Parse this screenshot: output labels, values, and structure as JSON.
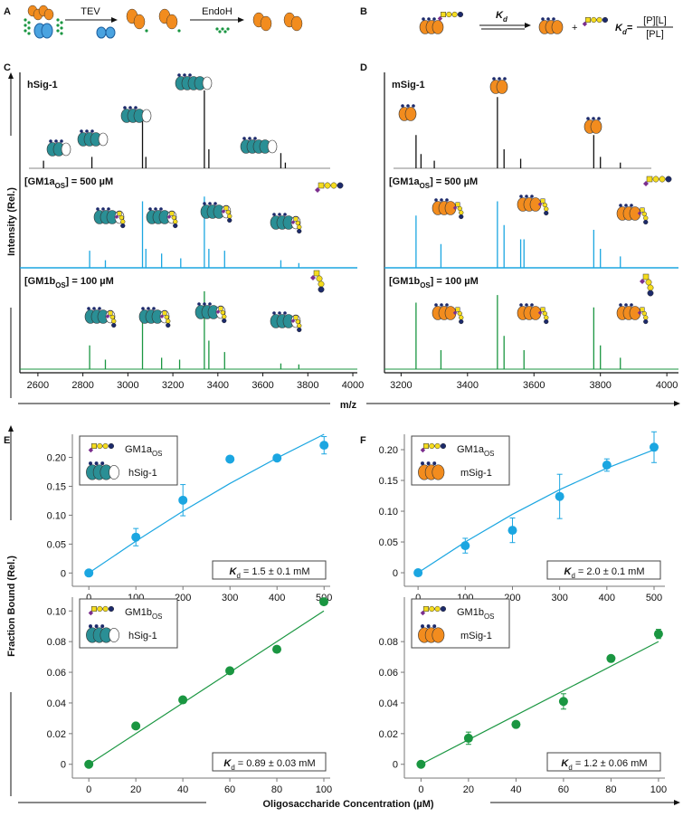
{
  "panels": [
    "A",
    "B",
    "C",
    "D",
    "E",
    "F"
  ],
  "panel_a": {
    "step1": "TEV",
    "step2": "EndoH"
  },
  "panel_b": {
    "kd_symbol": "K",
    "kd_subscript": "d",
    "plus": "+",
    "equals": "=",
    "numerator": "[P][L]",
    "denominator": "[PL]"
  },
  "axis_labels": {
    "mz": "m/z",
    "intensity": "Intensity (Rel.)",
    "fraction": "Fraction Bound (Rel.)",
    "concentration": "Oligosaccharide Concentration (µM)"
  },
  "chart_data": [
    {
      "type": "spectrum",
      "title": "hSig-1",
      "color": "#111111",
      "xlim": [
        2520,
        4020
      ],
      "ylim": [
        0,
        100
      ],
      "x": [
        2625,
        2840,
        3065,
        3080,
        3340,
        3360,
        3680,
        3700
      ],
      "values": [
        8,
        12,
        50,
        12,
        82,
        20,
        16,
        6
      ]
    },
    {
      "type": "spectrum",
      "label": {
        "name": "[GM1a",
        "subscript": "OS",
        "text": "] = 500 µM"
      },
      "color": "#1ba6e1",
      "xlim": [
        2520,
        4020
      ],
      "ylim": [
        0,
        100
      ],
      "x": [
        2830,
        2900,
        3065,
        3080,
        3150,
        3235,
        3340,
        3360,
        3430,
        3680,
        3760
      ],
      "values": [
        18,
        8,
        70,
        20,
        15,
        10,
        75,
        20,
        18,
        8,
        5
      ]
    },
    {
      "type": "spectrum",
      "label": {
        "name": "[GM1b",
        "subscript": "OS",
        "text": "] = 100 µM"
      },
      "color": "#1a9641",
      "xlim": [
        2520,
        4020
      ],
      "ylim": [
        0,
        100
      ],
      "xticks": [
        2600,
        2800,
        3000,
        3200,
        3400,
        3600,
        3800,
        4000
      ],
      "x": [
        2830,
        2900,
        3065,
        3150,
        3230,
        3340,
        3360,
        3430,
        3680,
        3760
      ],
      "values": [
        25,
        10,
        55,
        12,
        10,
        82,
        30,
        18,
        6,
        5
      ]
    },
    {
      "type": "spectrum",
      "title": "mSig-1",
      "color": "#111111",
      "xlim": [
        3150,
        4035
      ],
      "ylim": [
        0,
        100
      ],
      "x": [
        3245,
        3260,
        3300,
        3490,
        3510,
        3560,
        3780,
        3800,
        3860
      ],
      "values": [
        35,
        15,
        8,
        75,
        20,
        10,
        35,
        12,
        6
      ]
    },
    {
      "type": "spectrum",
      "label": {
        "name": "[GM1a",
        "subscript": "OS",
        "text": "] = 500 µM"
      },
      "color": "#1ba6e1",
      "xlim": [
        3150,
        4035
      ],
      "ylim": [
        0,
        100
      ],
      "x": [
        3245,
        3320,
        3490,
        3510,
        3560,
        3570,
        3780,
        3800,
        3860
      ],
      "values": [
        55,
        25,
        70,
        45,
        30,
        30,
        40,
        20,
        12
      ]
    },
    {
      "type": "spectrum",
      "label": {
        "name": "[GM1b",
        "subscript": "OS",
        "text": "] = 100 µM"
      },
      "color": "#1a9641",
      "xlim": [
        3150,
        4035
      ],
      "ylim": [
        0,
        100
      ],
      "xticks": [
        3200,
        3400,
        3600,
        3800,
        4000
      ],
      "x": [
        3245,
        3320,
        3490,
        3510,
        3570,
        3780,
        3800,
        3860
      ],
      "values": [
        70,
        20,
        78,
        35,
        20,
        65,
        25,
        12
      ]
    },
    {
      "type": "scatter",
      "color": "#1ba6e1",
      "xlim": [
        -35,
        513
      ],
      "ylim": [
        -0.023,
        0.24
      ],
      "xticks": [
        0,
        100,
        200,
        300,
        400,
        500
      ],
      "yticks": [
        0,
        0.05,
        {
          "value": 0.1,
          "label": "0.10"
        },
        0.15,
        {
          "value": 0.2,
          "label": "0.20"
        }
      ],
      "x": [
        0,
        100,
        200,
        300,
        400,
        500
      ],
      "values": [
        0,
        0.062,
        0.126,
        0.197,
        0.199,
        0.221
      ],
      "errors": [
        null,
        0.015,
        0.027,
        null,
        null,
        0.015
      ],
      "fit": {
        "x": [
          0,
          100,
          200,
          300,
          400,
          500
        ],
        "values": [
          0,
          0.055,
          0.107,
          0.155,
          0.199,
          0.24
        ]
      },
      "legend": {
        "name": "GM1a",
        "subscript": "OS",
        "protein": "hSig-1"
      },
      "kd": {
        "symbol": "K",
        "subscript": "d",
        "text": " = 1.5 ± 0.1 mM"
      }
    },
    {
      "type": "scatter",
      "color": "#1a9641",
      "xlim": [
        -7,
        102.7
      ],
      "ylim": [
        -0.009,
        0.109
      ],
      "xticks": [
        0,
        20,
        40,
        60,
        80,
        100
      ],
      "yticks": [
        0,
        0.02,
        0.04,
        0.06,
        0.08,
        {
          "value": 0.1,
          "label": "0.10"
        }
      ],
      "x": [
        0,
        20,
        40,
        60,
        80,
        100
      ],
      "values": [
        0,
        0.025,
        0.042,
        0.061,
        0.075,
        0.106
      ],
      "errors": [
        null,
        null,
        null,
        null,
        null,
        null
      ],
      "fit": {
        "x": [
          0,
          100
        ],
        "values": [
          0,
          0.1
        ]
      },
      "legend": {
        "name": "GM1b",
        "subscript": "OS",
        "protein": "hSig-1"
      },
      "kd": {
        "symbol": "K",
        "subscript": "d",
        "text": " = 0.89 ± 0.03 mM"
      }
    },
    {
      "type": "scatter",
      "color": "#1ba6e1",
      "xlim": [
        -29,
        523
      ],
      "ylim": [
        -0.022,
        0.225
      ],
      "xticks": [
        0,
        100,
        200,
        300,
        400,
        500
      ],
      "yticks": [
        0,
        0.05,
        {
          "value": 0.1,
          "label": "0.10"
        },
        0.15,
        {
          "value": 0.2,
          "label": "0.20"
        }
      ],
      "x": [
        0,
        100,
        200,
        300,
        400,
        500
      ],
      "values": [
        0,
        0.044,
        0.069,
        0.124,
        0.175,
        0.204
      ],
      "errors": [
        null,
        0.012,
        0.02,
        0.036,
        0.01,
        0.025
      ],
      "fit": {
        "x": [
          0,
          100,
          200,
          300,
          400,
          500
        ],
        "values": [
          0,
          0.05,
          0.095,
          0.135,
          0.17,
          0.2
        ]
      },
      "legend": {
        "name": "GM1a",
        "subscript": "OS",
        "protein": "mSig-1"
      },
      "kd": {
        "symbol": "K",
        "subscript": "d",
        "text": " = 2.0 ± 0.1 mM"
      }
    },
    {
      "type": "scatter",
      "color": "#1a9641",
      "xlim": [
        -7,
        102.7
      ],
      "ylim": [
        -0.009,
        0.109
      ],
      "xticks": [
        0,
        20,
        40,
        60,
        80,
        100
      ],
      "yticks": [
        0,
        0.02,
        0.04,
        0.06,
        0.08
      ],
      "x": [
        0,
        20,
        40,
        60,
        80,
        100
      ],
      "values": [
        0,
        0.017,
        0.026,
        0.041,
        0.069,
        0.085
      ],
      "errors": [
        null,
        0.004,
        null,
        0.005,
        null,
        0.003
      ],
      "fit": {
        "x": [
          0,
          100
        ],
        "values": [
          0,
          0.08
        ]
      },
      "legend": {
        "name": "GM1b",
        "subscript": "OS",
        "protein": "mSig-1"
      },
      "kd": {
        "symbol": "K",
        "subscript": "d",
        "text": " = 1.2 ± 0.06 mM"
      }
    }
  ]
}
